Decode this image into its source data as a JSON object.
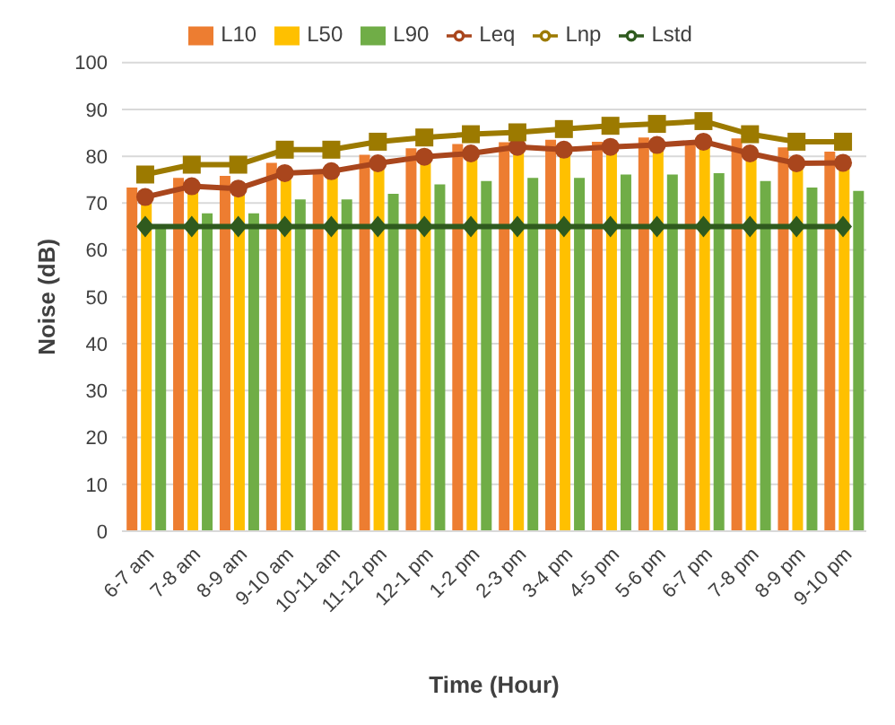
{
  "chart_data": {
    "type": "bar",
    "xlabel": "Time (Hour)",
    "ylabel": "Noise (dB)",
    "categories": [
      "6-7 am",
      "7-8 am",
      "8-9 am",
      "9-10 am",
      "10-11 am",
      "11-12 pm",
      "12-1 pm",
      "1-2 pm",
      "2-3 pm",
      "3-4 pm",
      "4-5 pm",
      "5-6 pm",
      "6-7 pm",
      "7-8 pm",
      "8-9 pm",
      "9-10 pm"
    ],
    "series": [
      {
        "name": "L10",
        "color": "#ed7d31",
        "values": [
          73.3,
          75.4,
          75.8,
          78.6,
          76.4,
          80.3,
          81.7,
          82.6,
          83,
          83.5,
          83.1,
          84,
          82.6,
          83.8,
          81.9,
          81
        ]
      },
      {
        "name": "L50",
        "color": "#ffc000",
        "values": [
          70,
          72.5,
          72,
          75,
          76,
          77.5,
          79,
          79.5,
          81,
          80.5,
          81,
          81.5,
          82,
          79.5,
          77.5,
          77.5
        ]
      },
      {
        "name": "L90",
        "color": "#70ad47",
        "values": [
          65,
          67.8,
          67.8,
          70.8,
          70.8,
          72,
          74,
          74.7,
          75.4,
          75.4,
          76.1,
          76.1,
          76.4,
          74.7,
          73.3,
          72.6
        ]
      },
      {
        "name": "Leq",
        "type": "line",
        "color": "#a9461d",
        "marker": "circle",
        "values": [
          71.3,
          73.6,
          73.1,
          76.4,
          76.8,
          78.5,
          79.9,
          80.6,
          82,
          81.4,
          82,
          82.4,
          83.1,
          80.6,
          78.5,
          78.6
        ]
      },
      {
        "name": "Lnp",
        "type": "line",
        "color": "#9c7a00",
        "marker": "square",
        "values": [
          76.1,
          78.2,
          78.2,
          81.4,
          81.4,
          83.1,
          84,
          84.7,
          85.1,
          85.8,
          86.5,
          86.9,
          87.5,
          84.7,
          83.1,
          83.1
        ]
      },
      {
        "name": "Lstd",
        "type": "line",
        "color": "#2f5a1e",
        "marker": "diamond",
        "values": [
          65,
          65,
          65,
          65,
          65,
          65,
          65,
          65,
          65,
          65,
          65,
          65,
          65,
          65,
          65,
          65
        ]
      }
    ],
    "ylim": [
      0,
      100
    ],
    "yticks": [
      0,
      10,
      20,
      30,
      40,
      50,
      60,
      70,
      80,
      90,
      100
    ],
    "grid": "y",
    "legend": "top"
  }
}
